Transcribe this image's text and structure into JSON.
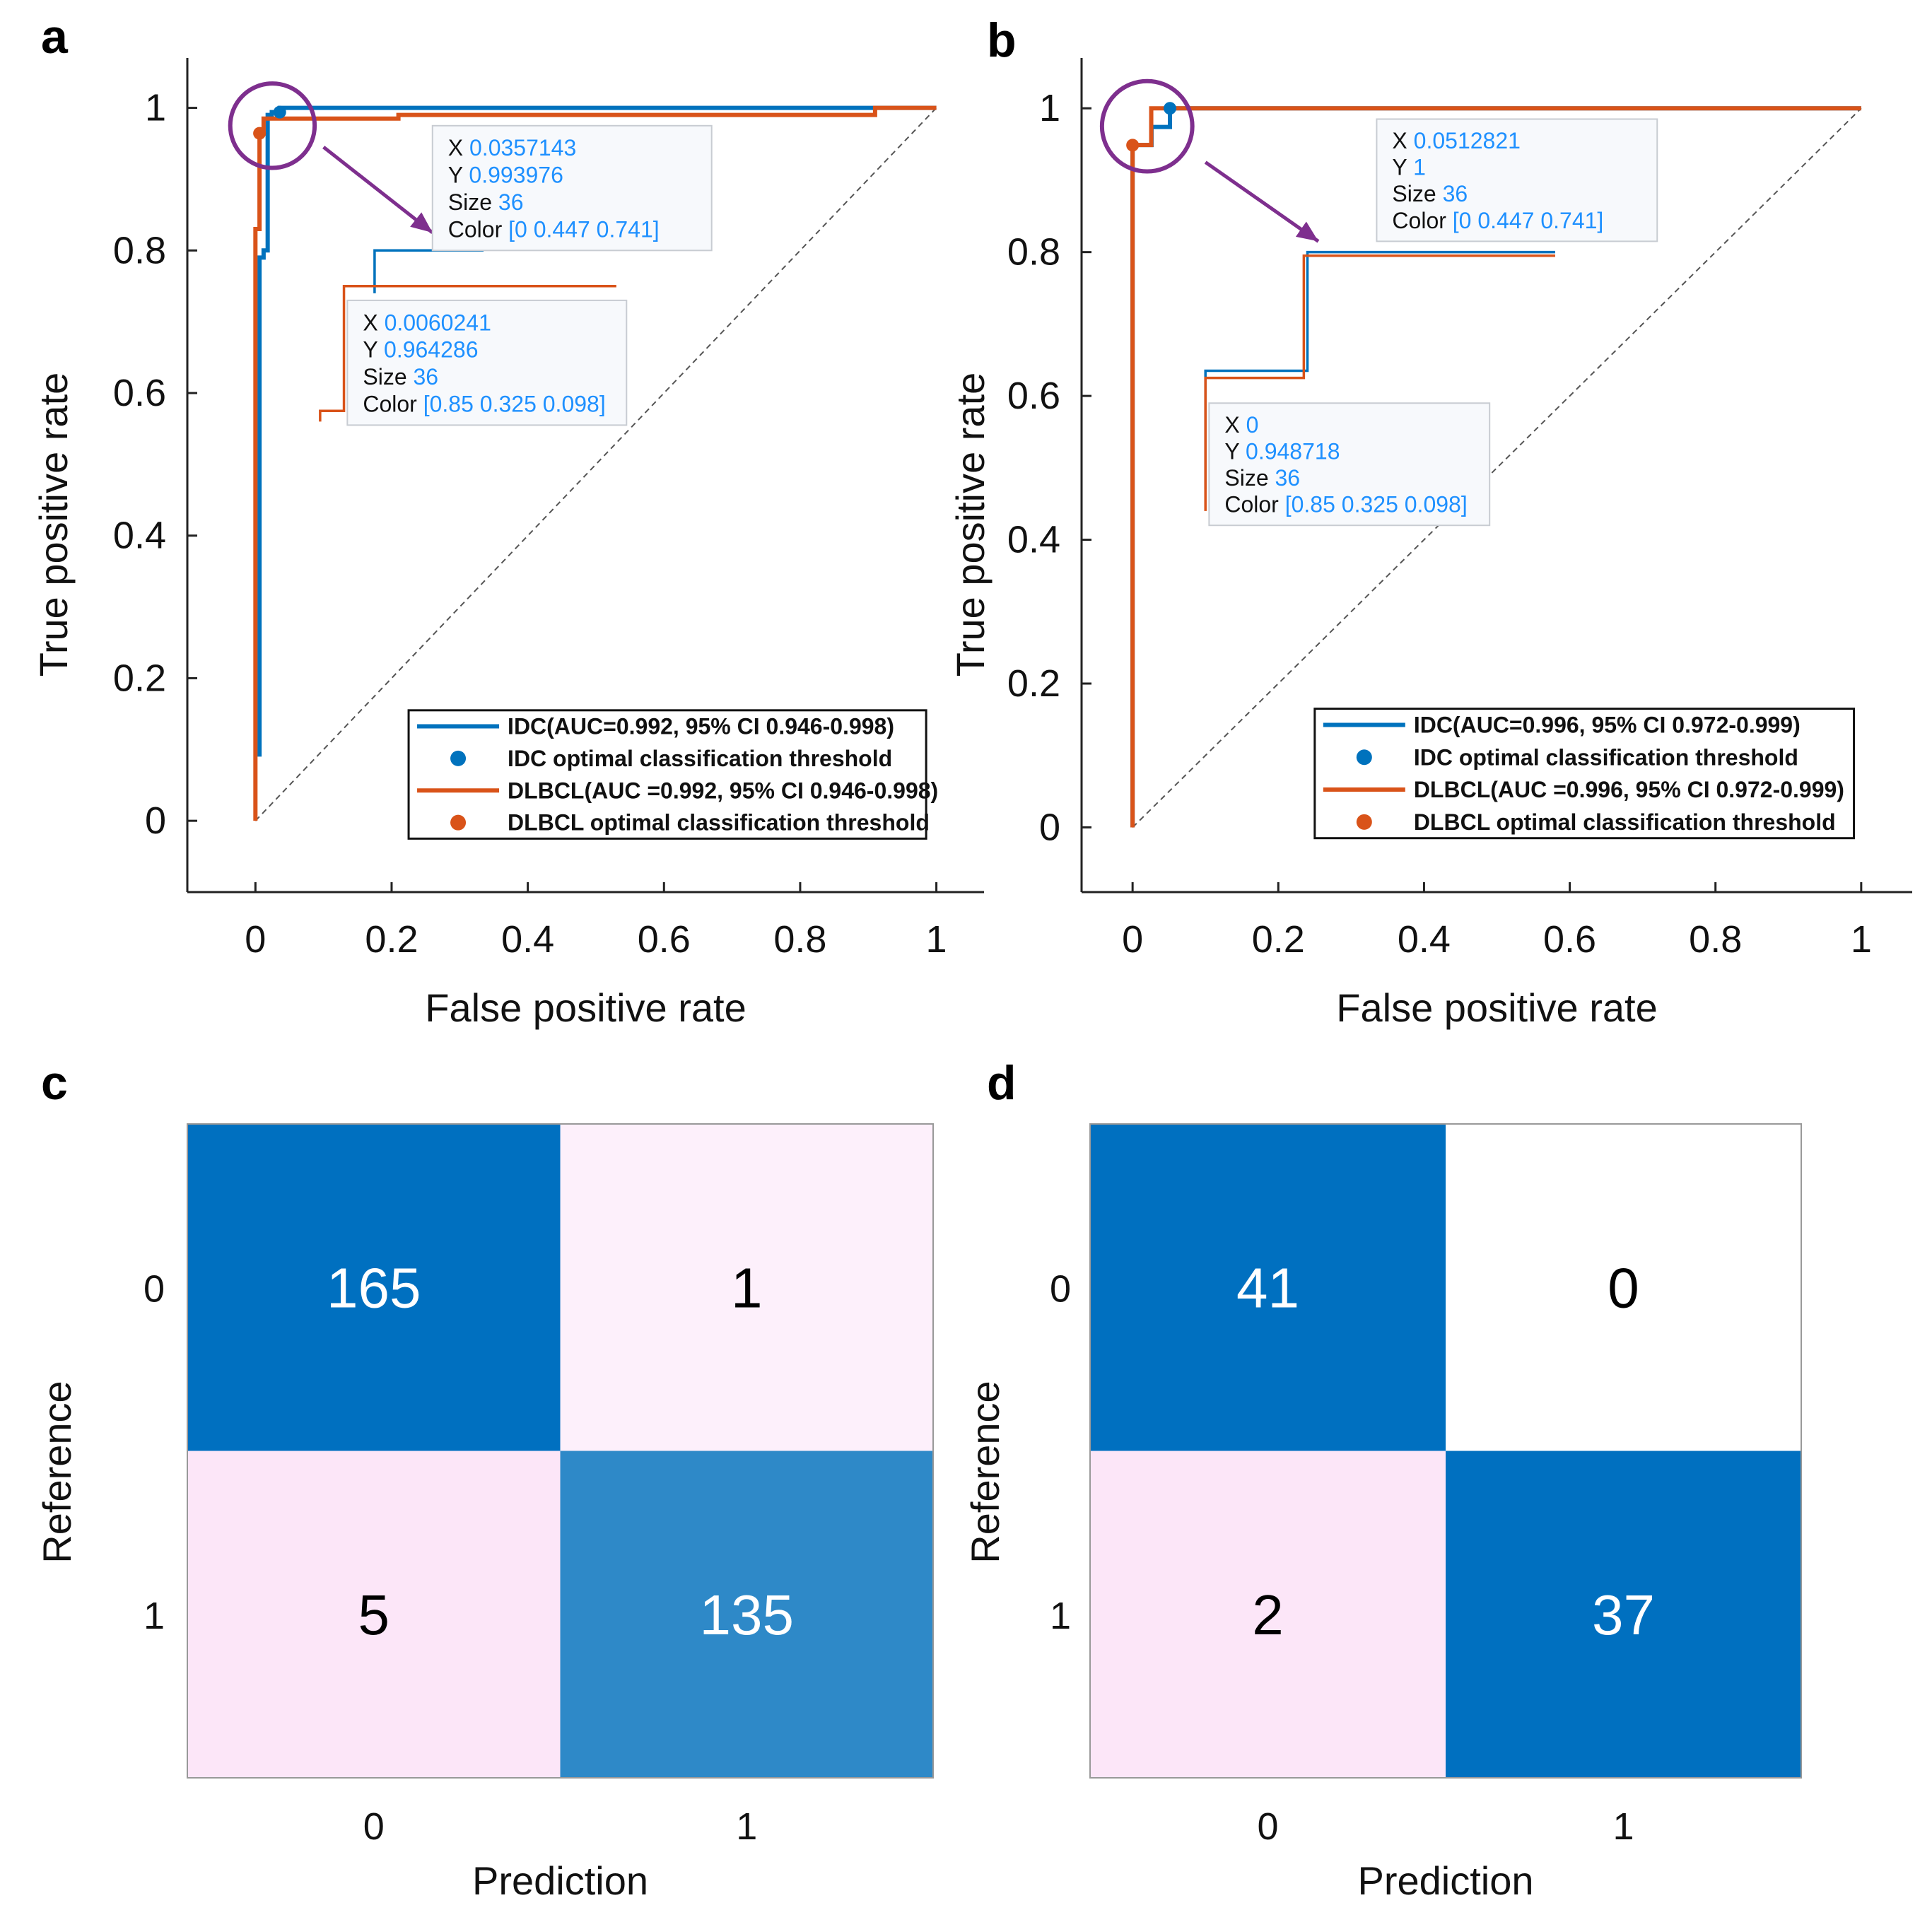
{
  "colors": {
    "idc": "#0072BD",
    "dlbcl": "#D95319",
    "highlight": "#7E2F8E",
    "tooltip_value": "#1E90FF",
    "cm_dark": "#0070C0",
    "cm_mid": "#2E89C8",
    "cm_light": "#FCE6F8",
    "cm_lighter": "#FDF0FB",
    "cm_white": "#FFFFFF"
  },
  "chart_data": [
    {
      "panel_label": "a",
      "type": "line",
      "xlabel": "False positive rate",
      "ylabel": "True positive rate",
      "xlim": [
        -0.1,
        1.07
      ],
      "ylim": [
        -0.1,
        1.07
      ],
      "xticks": [
        0,
        0.2,
        0.4,
        0.6,
        0.8,
        1
      ],
      "xtick_labels": [
        "0",
        "0.2",
        "0.4",
        "0.6",
        "0.8",
        "1"
      ],
      "yticks": [
        0,
        0.2,
        0.4,
        0.6,
        0.8,
        1
      ],
      "ytick_labels": [
        "0",
        "0.2",
        "0.4",
        "0.6",
        "0.8",
        "1"
      ],
      "series": [
        {
          "name": "IDC(AUC=0.992, 95% CI 0.946-0.998)",
          "key": "idc",
          "x": [
            0.006,
            0.006,
            0.012,
            0.012,
            0.018,
            0.018,
            0.024,
            0.024,
            0.0357,
            0.0357,
            0.92,
            0.92,
            1
          ],
          "y": [
            0.09,
            0.79,
            0.79,
            0.8,
            0.8,
            0.99,
            0.99,
            0.994,
            0.994,
            1,
            1,
            1,
            1
          ]
        },
        {
          "name": "DLBCL(AUC =0.992, 95% CI 0.946-0.998)",
          "key": "dlbcl",
          "x": [
            0,
            0,
            0.006,
            0.006,
            0.012,
            0.012,
            0.21,
            0.21,
            0.91,
            0.91,
            1
          ],
          "y": [
            0,
            0.83,
            0.83,
            0.964,
            0.964,
            0.985,
            0.985,
            0.99,
            0.99,
            1,
            1
          ]
        }
      ],
      "optimal_points": [
        {
          "name": "IDC optimal classification threshold",
          "key": "idc",
          "x": 0.0357143,
          "y": 0.993976
        },
        {
          "name": "DLBCL optimal classification threshold",
          "key": "dlbcl",
          "x": 0.0060241,
          "y": 0.964286
        }
      ],
      "zoom_circle": {
        "x": 0.025,
        "y": 0.975,
        "r": 0.062
      },
      "arrow": {
        "from": [
          0.1,
          0.945
        ],
        "to": [
          0.26,
          0.825
        ]
      },
      "tooltips": [
        {
          "x": "0.0357143",
          "y": "0.993976",
          "size": "36",
          "color": "[0 0.447 0.741]",
          "anchor": [
            0.26,
            0.975
          ],
          "width": 0.41,
          "height": 0.175
        },
        {
          "x": "0.0060241",
          "y": "0.964286",
          "size": "36",
          "color": "[0.85 0.325 0.098]",
          "anchor": [
            0.135,
            0.73
          ],
          "width": 0.41,
          "height": 0.175
        }
      ],
      "inset_traces": [
        {
          "key": "idc",
          "x": [
            0.175,
            0.175,
            0.335
          ],
          "y": [
            0.74,
            0.8,
            0.8
          ]
        },
        {
          "key": "dlbcl",
          "x": [
            0.095,
            0.095,
            0.13,
            0.13,
            0.53
          ],
          "y": [
            0.56,
            0.575,
            0.575,
            0.75,
            0.75
          ]
        }
      ],
      "legend": {
        "location": "bottom-right",
        "anchor": [
          0.225,
          0.155
        ],
        "width": 0.76,
        "height": 0.18,
        "entries": [
          {
            "label": "IDC(AUC=0.992, 95% CI 0.946-0.998)",
            "marker": "line",
            "key": "idc"
          },
          {
            "label": "IDC optimal classification threshold",
            "marker": "dot",
            "key": "idc"
          },
          {
            "label": "DLBCL(AUC =0.992, 95% CI 0.946-0.998)",
            "marker": "line",
            "key": "dlbcl"
          },
          {
            "label": "DLBCL optimal classification threshold",
            "marker": "dot",
            "key": "dlbcl"
          }
        ]
      }
    },
    {
      "panel_label": "b",
      "type": "line",
      "xlabel": "False positive rate",
      "ylabel": "True positive rate",
      "xlim": [
        -0.07,
        1.07
      ],
      "ylim": [
        -0.09,
        1.07
      ],
      "xticks": [
        0,
        0.2,
        0.4,
        0.6,
        0.8,
        1
      ],
      "xtick_labels": [
        "0",
        "0.2",
        "0.4",
        "0.6",
        "0.8",
        "1"
      ],
      "yticks": [
        0,
        0.2,
        0.4,
        0.6,
        0.8,
        1
      ],
      "ytick_labels": [
        "0",
        "0.2",
        "0.4",
        "0.6",
        "0.8",
        "1"
      ],
      "series": [
        {
          "name": "IDC(AUC=0.996, 95% CI 0.972-0.999)",
          "key": "idc",
          "x": [
            0,
            0,
            0.026,
            0.026,
            0.0513,
            0.0513,
            1
          ],
          "y": [
            0,
            0.949,
            0.949,
            0.974,
            0.974,
            1,
            1
          ]
        },
        {
          "name": "DLBCL(AUC =0.996, 95% CI 0.972-0.999)",
          "key": "dlbcl",
          "x": [
            0,
            0,
            0.0256,
            0.0256,
            0.0256,
            0.0256,
            1
          ],
          "y": [
            0,
            0.949,
            0.949,
            0.974,
            0.974,
            1,
            1
          ]
        }
      ],
      "optimal_points": [
        {
          "name": "IDC optimal classification threshold",
          "key": "idc",
          "x": 0.0512821,
          "y": 1
        },
        {
          "name": "DLBCL optimal classification threshold",
          "key": "dlbcl",
          "x": 0,
          "y": 0.948718
        }
      ],
      "zoom_circle": {
        "x": 0.02,
        "y": 0.975,
        "r": 0.062
      },
      "arrow": {
        "from": [
          0.1,
          0.925
        ],
        "to": [
          0.255,
          0.815
        ]
      },
      "tooltips": [
        {
          "x": "0.0512821",
          "y": "1",
          "size": "36",
          "color": "[0 0.447 0.741]",
          "anchor": [
            0.335,
            0.985
          ],
          "width": 0.385,
          "height": 0.17
        },
        {
          "x": "0",
          "y": "0.948718",
          "size": "36",
          "color": "[0.85 0.325 0.098]",
          "anchor": [
            0.105,
            0.59
          ],
          "width": 0.385,
          "height": 0.17
        }
      ],
      "inset_traces": [
        {
          "key": "idc",
          "x": [
            0.1,
            0.1,
            0.24,
            0.24,
            0.58
          ],
          "y": [
            0.47,
            0.635,
            0.635,
            0.8,
            0.8
          ]
        },
        {
          "key": "dlbcl",
          "x": [
            0.1,
            0.1,
            0.235,
            0.235,
            0.58
          ],
          "y": [
            0.44,
            0.625,
            0.625,
            0.795,
            0.795
          ]
        }
      ],
      "legend": {
        "location": "bottom-right",
        "anchor": [
          0.25,
          0.165
        ],
        "width": 0.74,
        "height": 0.18,
        "entries": [
          {
            "label": "IDC(AUC=0.996, 95% CI 0.972-0.999)",
            "marker": "line",
            "key": "idc"
          },
          {
            "label": "IDC optimal classification threshold",
            "marker": "dot",
            "key": "idc"
          },
          {
            "label": "DLBCL(AUC =0.996, 95% CI 0.972-0.999)",
            "marker": "line",
            "key": "dlbcl"
          },
          {
            "label": "DLBCL optimal classification threshold",
            "marker": "dot",
            "key": "dlbcl"
          }
        ]
      }
    },
    {
      "panel_label": "c",
      "type": "heatmap",
      "xlabel": "Prediction",
      "ylabel": "Reference",
      "x_categories": [
        "0",
        "1"
      ],
      "y_categories": [
        "0",
        "1"
      ],
      "values": [
        [
          165,
          1
        ],
        [
          5,
          135
        ]
      ],
      "cell_fills": [
        [
          "cm_dark",
          "cm_lighter"
        ],
        [
          "cm_light",
          "cm_mid"
        ]
      ],
      "text_colors": [
        [
          "#FFFFFF",
          "#000000"
        ],
        [
          "#000000",
          "#FFFFFF"
        ]
      ]
    },
    {
      "panel_label": "d",
      "type": "heatmap",
      "xlabel": "Prediction",
      "ylabel": "Reference",
      "x_categories": [
        "0",
        "1"
      ],
      "y_categories": [
        "0",
        "1"
      ],
      "values": [
        [
          41,
          0
        ],
        [
          2,
          37
        ]
      ],
      "cell_fills": [
        [
          "cm_dark",
          "cm_white"
        ],
        [
          "cm_light",
          "cm_dark"
        ]
      ],
      "text_colors": [
        [
          "#FFFFFF",
          "#000000"
        ],
        [
          "#000000",
          "#FFFFFF"
        ]
      ]
    }
  ]
}
